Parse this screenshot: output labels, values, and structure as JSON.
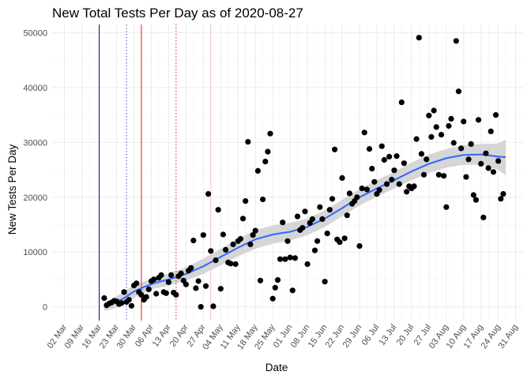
{
  "chart_data": {
    "type": "scatter",
    "title": "New Total Tests Per Day as of 2020-08-27",
    "xlabel": "Date",
    "ylabel": "New Tests Per Day",
    "xlim": [
      "2020-02-26",
      "2020-09-03"
    ],
    "ylim": [
      -2500,
      51500
    ],
    "x_ticks": [
      "2020-03-02",
      "2020-03-09",
      "2020-03-16",
      "2020-03-23",
      "2020-03-30",
      "2020-04-06",
      "2020-04-13",
      "2020-04-20",
      "2020-04-27",
      "2020-05-04",
      "2020-05-11",
      "2020-05-18",
      "2020-05-25",
      "2020-06-01",
      "2020-06-08",
      "2020-06-15",
      "2020-06-22",
      "2020-06-29",
      "2020-07-06",
      "2020-07-13",
      "2020-07-20",
      "2020-07-27",
      "2020-08-03",
      "2020-08-10",
      "2020-08-17",
      "2020-08-24",
      "2020-08-31"
    ],
    "x_tick_labels": [
      "02 Mar",
      "09 Mar",
      "16 Mar",
      "23 Mar",
      "30 Mar",
      "06 Apr",
      "13 Apr",
      "20 Apr",
      "27 Apr",
      "04 May",
      "11 May",
      "18 May",
      "25 May",
      "01 Jun",
      "08 Jun",
      "15 Jun",
      "22 Jun",
      "29 Jun",
      "06 Jul",
      "13 Jul",
      "20 Jul",
      "27 Jul",
      "03 Aug",
      "10 Aug",
      "17 Aug",
      "24 Aug",
      "31 Aug"
    ],
    "y_ticks": [
      0,
      10000,
      20000,
      30000,
      40000,
      50000
    ],
    "y_tick_labels": [
      "0",
      "10000",
      "20000",
      "30000",
      "40000",
      "50000"
    ],
    "grid": true,
    "legend": "none",
    "colors": {
      "points": "#000000",
      "smooth": "#3366ff",
      "band": "#cccccc"
    },
    "vlines": [
      {
        "date": "2020-03-16",
        "color": "#000080",
        "style": "solid"
      },
      {
        "date": "2020-03-27",
        "color": "#4040c0",
        "style": "dotted"
      },
      {
        "date": "2020-04-02",
        "color": "#e02020",
        "style": "solid"
      },
      {
        "date": "2020-04-16",
        "color": "#e02020",
        "style": "dotted"
      },
      {
        "date": "2020-04-30",
        "color": "#f4c0c0",
        "style": "solid"
      },
      {
        "date": "2020-05-14",
        "color": "#f8d8d8",
        "style": "dotted"
      }
    ],
    "series": [
      {
        "points": [
          [
            "2020-03-18",
            1600
          ],
          [
            "2020-03-19",
            300
          ],
          [
            "2020-03-20",
            600
          ],
          [
            "2020-03-21",
            800
          ],
          [
            "2020-03-22",
            1100
          ],
          [
            "2020-03-23",
            1000
          ],
          [
            "2020-03-24",
            500
          ],
          [
            "2020-03-25",
            700
          ],
          [
            "2020-03-26",
            2700
          ],
          [
            "2020-03-27",
            900
          ],
          [
            "2020-03-28",
            1300
          ],
          [
            "2020-03-29",
            200
          ],
          [
            "2020-03-30",
            3900
          ],
          [
            "2020-03-31",
            4300
          ],
          [
            "2020-04-01",
            2700
          ],
          [
            "2020-04-02",
            2200
          ],
          [
            "2020-04-03",
            1300
          ],
          [
            "2020-04-04",
            1800
          ],
          [
            "2020-04-05",
            3200
          ],
          [
            "2020-04-06",
            4700
          ],
          [
            "2020-04-07",
            5000
          ],
          [
            "2020-04-08",
            2400
          ],
          [
            "2020-04-09",
            5300
          ],
          [
            "2020-04-10",
            5800
          ],
          [
            "2020-04-11",
            2700
          ],
          [
            "2020-04-12",
            2500
          ],
          [
            "2020-04-13",
            4500
          ],
          [
            "2020-04-14",
            5800
          ],
          [
            "2020-04-15",
            2600
          ],
          [
            "2020-04-16",
            2200
          ],
          [
            "2020-04-17",
            5600
          ],
          [
            "2020-04-18",
            6100
          ],
          [
            "2020-04-19",
            4800
          ],
          [
            "2020-04-20",
            4100
          ],
          [
            "2020-04-21",
            6600
          ],
          [
            "2020-04-22",
            7100
          ],
          [
            "2020-04-23",
            12100
          ],
          [
            "2020-04-24",
            3400
          ],
          [
            "2020-04-25",
            4700
          ],
          [
            "2020-04-26",
            0
          ],
          [
            "2020-04-27",
            13100
          ],
          [
            "2020-04-28",
            3800
          ],
          [
            "2020-04-29",
            20600
          ],
          [
            "2020-04-30",
            10200
          ],
          [
            "2020-05-01",
            100
          ],
          [
            "2020-05-02",
            8500
          ],
          [
            "2020-05-03",
            17700
          ],
          [
            "2020-05-04",
            3300
          ],
          [
            "2020-05-05",
            13200
          ],
          [
            "2020-05-06",
            10400
          ],
          [
            "2020-05-07",
            8100
          ],
          [
            "2020-05-08",
            7900
          ],
          [
            "2020-05-09",
            11400
          ],
          [
            "2020-05-10",
            7800
          ],
          [
            "2020-05-11",
            12000
          ],
          [
            "2020-05-12",
            12400
          ],
          [
            "2020-05-13",
            16100
          ],
          [
            "2020-05-14",
            19300
          ],
          [
            "2020-05-15",
            30100
          ],
          [
            "2020-05-16",
            11400
          ],
          [
            "2020-05-17",
            13100
          ],
          [
            "2020-05-18",
            13900
          ],
          [
            "2020-05-19",
            24800
          ],
          [
            "2020-05-20",
            4800
          ],
          [
            "2020-05-21",
            19600
          ],
          [
            "2020-05-22",
            26500
          ],
          [
            "2020-05-23",
            28300
          ],
          [
            "2020-05-24",
            31600
          ],
          [
            "2020-05-25",
            1500
          ],
          [
            "2020-05-26",
            3500
          ],
          [
            "2020-05-27",
            4900
          ],
          [
            "2020-05-28",
            8700
          ],
          [
            "2020-05-29",
            15400
          ],
          [
            "2020-05-30",
            8700
          ],
          [
            "2020-05-31",
            12000
          ],
          [
            "2020-06-01",
            9000
          ],
          [
            "2020-06-02",
            3000
          ],
          [
            "2020-06-03",
            8900
          ],
          [
            "2020-06-04",
            16500
          ],
          [
            "2020-06-05",
            14000
          ],
          [
            "2020-06-06",
            14400
          ],
          [
            "2020-06-07",
            17400
          ],
          [
            "2020-06-08",
            7800
          ],
          [
            "2020-06-09",
            15300
          ],
          [
            "2020-06-10",
            16000
          ],
          [
            "2020-06-11",
            10300
          ],
          [
            "2020-06-12",
            12000
          ],
          [
            "2020-06-13",
            18200
          ],
          [
            "2020-06-14",
            16000
          ],
          [
            "2020-06-15",
            4600
          ],
          [
            "2020-06-16",
            13400
          ],
          [
            "2020-06-17",
            17700
          ],
          [
            "2020-06-18",
            19700
          ],
          [
            "2020-06-19",
            28700
          ],
          [
            "2020-06-20",
            12300
          ],
          [
            "2020-06-21",
            11800
          ],
          [
            "2020-06-22",
            23500
          ],
          [
            "2020-06-23",
            12500
          ],
          [
            "2020-06-24",
            16700
          ],
          [
            "2020-06-25",
            20700
          ],
          [
            "2020-06-26",
            18800
          ],
          [
            "2020-06-27",
            19300
          ],
          [
            "2020-06-28",
            20000
          ],
          [
            "2020-06-29",
            11100
          ],
          [
            "2020-06-30",
            21600
          ],
          [
            "2020-07-01",
            31800
          ],
          [
            "2020-07-02",
            21400
          ],
          [
            "2020-07-03",
            28800
          ],
          [
            "2020-07-04",
            25200
          ],
          [
            "2020-07-05",
            22800
          ],
          [
            "2020-07-06",
            20600
          ],
          [
            "2020-07-07",
            21300
          ],
          [
            "2020-07-08",
            29300
          ],
          [
            "2020-07-09",
            26800
          ],
          [
            "2020-07-10",
            22400
          ],
          [
            "2020-07-11",
            27400
          ],
          [
            "2020-07-12",
            23200
          ],
          [
            "2020-07-13",
            24900
          ],
          [
            "2020-07-14",
            27500
          ],
          [
            "2020-07-15",
            22400
          ],
          [
            "2020-07-16",
            37300
          ],
          [
            "2020-07-17",
            26200
          ],
          [
            "2020-07-18",
            21000
          ],
          [
            "2020-07-19",
            22000
          ],
          [
            "2020-07-20",
            21600
          ],
          [
            "2020-07-21",
            22000
          ],
          [
            "2020-07-22",
            30600
          ],
          [
            "2020-07-23",
            49100
          ],
          [
            "2020-07-24",
            27900
          ],
          [
            "2020-07-25",
            24100
          ],
          [
            "2020-07-26",
            26900
          ],
          [
            "2020-07-27",
            34900
          ],
          [
            "2020-07-28",
            31000
          ],
          [
            "2020-07-29",
            35800
          ],
          [
            "2020-07-30",
            32800
          ],
          [
            "2020-07-31",
            24100
          ],
          [
            "2020-08-01",
            31400
          ],
          [
            "2020-08-02",
            23900
          ],
          [
            "2020-08-03",
            18200
          ],
          [
            "2020-08-04",
            33000
          ],
          [
            "2020-08-05",
            34300
          ],
          [
            "2020-08-06",
            29900
          ],
          [
            "2020-08-07",
            48500
          ],
          [
            "2020-08-08",
            39300
          ],
          [
            "2020-08-09",
            28900
          ],
          [
            "2020-08-10",
            33800
          ],
          [
            "2020-08-11",
            23700
          ],
          [
            "2020-08-12",
            26900
          ],
          [
            "2020-08-13",
            29700
          ],
          [
            "2020-08-14",
            20400
          ],
          [
            "2020-08-15",
            19500
          ],
          [
            "2020-08-16",
            34100
          ],
          [
            "2020-08-17",
            26100
          ],
          [
            "2020-08-18",
            16300
          ],
          [
            "2020-08-19",
            28000
          ],
          [
            "2020-08-20",
            25300
          ],
          [
            "2020-08-21",
            32000
          ],
          [
            "2020-08-22",
            24600
          ],
          [
            "2020-08-23",
            35000
          ],
          [
            "2020-08-24",
            26600
          ],
          [
            "2020-08-25",
            19700
          ],
          [
            "2020-08-26",
            20600
          ]
        ]
      }
    ],
    "smooth": {
      "x": [
        "2020-03-18",
        "2020-03-22",
        "2020-03-26",
        "2020-03-30",
        "2020-04-03",
        "2020-04-07",
        "2020-04-13",
        "2020-04-20",
        "2020-04-27",
        "2020-05-04",
        "2020-05-11",
        "2020-05-18",
        "2020-05-25",
        "2020-06-01",
        "2020-06-08",
        "2020-06-15",
        "2020-06-22",
        "2020-06-29",
        "2020-07-06",
        "2020-07-13",
        "2020-07-20",
        "2020-07-27",
        "2020-08-03",
        "2020-08-10",
        "2020-08-17",
        "2020-08-24",
        "2020-08-27"
      ],
      "y": [
        0,
        700,
        1600,
        2800,
        3600,
        4300,
        5000,
        6000,
        7400,
        9100,
        10800,
        12300,
        13200,
        13700,
        14600,
        16100,
        18000,
        20000,
        21600,
        23100,
        24700,
        26100,
        27100,
        27700,
        27800,
        27400,
        27300
      ],
      "lower": [
        -700,
        -300,
        400,
        1600,
        2600,
        3300,
        3900,
        4800,
        6000,
        7600,
        9200,
        10600,
        11500,
        12100,
        13100,
        14600,
        16500,
        18500,
        20100,
        21600,
        23100,
        24400,
        25400,
        25900,
        25900,
        25000,
        24000
      ],
      "upper": [
        700,
        1700,
        2800,
        4000,
        4600,
        5300,
        6100,
        7200,
        8800,
        10600,
        12400,
        14000,
        14900,
        15300,
        16100,
        17600,
        19500,
        21500,
        23100,
        24600,
        26300,
        27800,
        28800,
        29500,
        29700,
        29800,
        30500
      ]
    }
  }
}
